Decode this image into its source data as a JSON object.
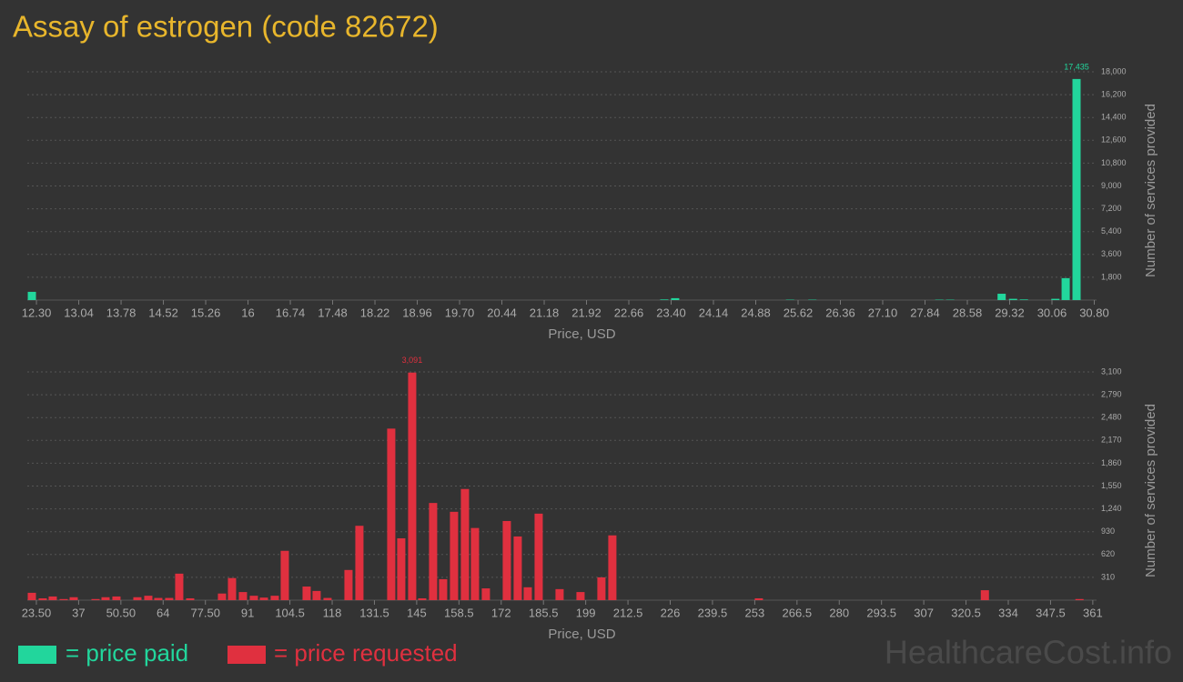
{
  "title": "Assay of estrogen (code 82672)",
  "watermark": "HealthcareCost.info",
  "chart_data": [
    {
      "type": "bar",
      "x": [
        12.22,
        23.28,
        23.47,
        25.48,
        25.87,
        28.09,
        28.28,
        29.18,
        29.38,
        29.57,
        30.12,
        30.3,
        30.49
      ],
      "series": [
        {
          "name": "= price paid",
          "color": "#22d69c",
          "values": [
            650,
            50,
            150,
            30,
            30,
            30,
            30,
            500,
            100,
            50,
            100,
            1730,
            17435
          ],
          "value_labels": [
            null,
            null,
            null,
            null,
            null,
            null,
            null,
            null,
            null,
            null,
            null,
            null,
            "17,435"
          ]
        }
      ],
      "xlabel": "Price, USD",
      "ylabel": "Number of services provided",
      "xlim": [
        12.14,
        30.84
      ],
      "ylim": [
        0,
        18000
      ],
      "xticks": [
        {
          "value": 12.3,
          "label": "12.30"
        },
        13.04,
        13.78,
        14.52,
        15.26,
        16,
        16.74,
        17.48,
        18.22,
        18.96,
        {
          "value": 19.7,
          "label": "19.70"
        },
        20.44,
        21.18,
        21.92,
        22.66,
        {
          "value": 23.4,
          "label": "23.40"
        },
        24.14,
        24.88,
        25.62,
        26.36,
        {
          "value": 27.1,
          "label": "27.10"
        },
        27.84,
        28.58,
        29.32,
        30.06,
        {
          "value": 30.8,
          "label": "30.80"
        }
      ],
      "yticks": [
        {
          "value": 1800,
          "label": "1,800"
        },
        {
          "value": 3600,
          "label": "3,600"
        },
        {
          "value": 5400,
          "label": "5,400"
        },
        {
          "value": 7200,
          "label": "7,200"
        },
        {
          "value": 9000,
          "label": "9,000"
        },
        {
          "value": 10800,
          "label": "10,800"
        },
        {
          "value": 12600,
          "label": "12,600"
        },
        {
          "value": 14400,
          "label": "14,400"
        },
        {
          "value": 16200,
          "label": "16,200"
        },
        {
          "value": 18000,
          "label": "18,000"
        }
      ],
      "grid": true
    },
    {
      "type": "bar",
      "x": [
        22.05,
        25.53,
        28.73,
        32.22,
        35.42,
        42.4,
        45.6,
        49.08,
        55.77,
        59.26,
        62.45,
        65.94,
        69.14,
        72.63,
        82.8,
        86.0,
        89.49,
        92.98,
        96.18,
        99.66,
        102.86,
        109.84,
        113.03,
        116.52,
        123.21,
        126.7,
        136.87,
        140.07,
        143.56,
        146.76,
        150.24,
        153.44,
        156.93,
        160.42,
        163.62,
        167.1,
        173.79,
        177.28,
        180.48,
        183.97,
        190.65,
        197.34,
        204.02,
        207.51,
        254.31,
        326.52,
        356.75
      ],
      "series": [
        {
          "name": "= price requested",
          "color": "#e0303f",
          "values": [
            100,
            25,
            50,
            15,
            40,
            15,
            40,
            50,
            40,
            60,
            30,
            30,
            360,
            25,
            90,
            300,
            110,
            60,
            35,
            60,
            670,
            185,
            125,
            30,
            410,
            1010,
            2330,
            840,
            3091,
            25,
            1320,
            285,
            1200,
            1510,
            980,
            160,
            1075,
            865,
            175,
            1175,
            150,
            110,
            310,
            880,
            25,
            135,
            15
          ],
          "value_labels": [
            null,
            null,
            null,
            null,
            null,
            null,
            null,
            null,
            null,
            null,
            null,
            null,
            null,
            null,
            null,
            null,
            null,
            null,
            null,
            null,
            null,
            null,
            null,
            null,
            null,
            null,
            null,
            null,
            "3,091",
            null,
            null,
            null,
            null,
            null,
            null,
            null,
            null,
            null,
            null,
            null,
            null,
            null,
            null,
            null,
            null,
            null,
            null
          ]
        }
      ],
      "xlabel": "Price, USD",
      "ylabel": "Number of services provided",
      "xlim": [
        20.6,
        362.2
      ],
      "ylim": [
        0,
        3100
      ],
      "xticks": [
        {
          "value": 23.5,
          "label": "23.50"
        },
        37,
        {
          "value": 50.5,
          "label": "50.50"
        },
        64,
        {
          "value": 77.5,
          "label": "77.50"
        },
        91,
        104.5,
        118,
        131.5,
        145,
        158.5,
        172,
        185.5,
        199,
        212.5,
        226,
        239.5,
        253,
        266.5,
        280,
        293.5,
        307,
        320.5,
        334,
        347.5,
        361
      ],
      "yticks": [
        310,
        620,
        930,
        {
          "value": 1240,
          "label": "1,240"
        },
        {
          "value": 1550,
          "label": "1,550"
        },
        {
          "value": 1860,
          "label": "1,860"
        },
        {
          "value": 2170,
          "label": "2,170"
        },
        {
          "value": 2480,
          "label": "2,480"
        },
        {
          "value": 2790,
          "label": "2,790"
        },
        {
          "value": 3100,
          "label": "3,100"
        }
      ],
      "grid": true
    }
  ]
}
